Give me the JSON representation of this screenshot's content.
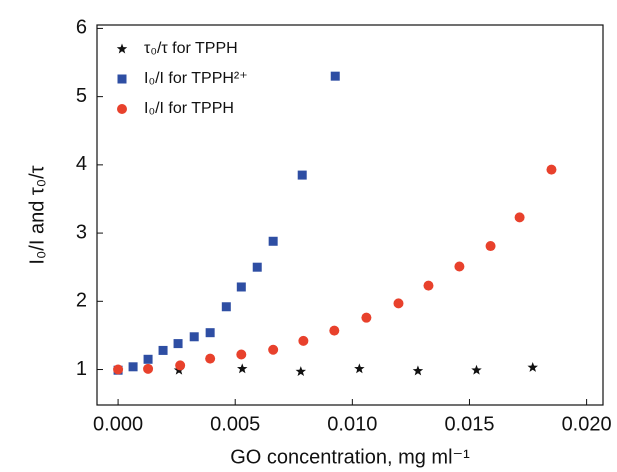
{
  "chart_data": {
    "type": "scatter",
    "xlabel": "GO concentration, mg ml⁻¹",
    "ylabel": "I₀/I and τ₀/τ",
    "xlim": [
      -0.0009,
      0.0207
    ],
    "ylim": [
      0.48,
      6.05
    ],
    "xticks": [
      {
        "value": 0,
        "label": "0.000"
      },
      {
        "value": 0.005,
        "label": "0.005"
      },
      {
        "value": 0.01,
        "label": "0.010"
      },
      {
        "value": 0.015,
        "label": "0.015"
      },
      {
        "value": 0.02,
        "label": "0.020"
      }
    ],
    "yticks": [
      1,
      2,
      3,
      4,
      5,
      6
    ],
    "legend": "upper left",
    "series": [
      {
        "name": "τ₀/τ for TPPH",
        "color": "#111111",
        "marker": "star",
        "x": [
          0,
          0.0026,
          0.0053,
          0.0078,
          0.0103,
          0.0128,
          0.0153,
          0.0177
        ],
        "values": [
          0.99,
          0.99,
          1.01,
          0.97,
          1.01,
          0.98,
          0.99,
          1.03
        ]
      },
      {
        "name": "I₀/I for TPPH²⁺",
        "color": "#2e4ea3",
        "marker": "square",
        "x": [
          0,
          0.00064,
          0.00128,
          0.00192,
          0.00256,
          0.00325,
          0.00393,
          0.00462,
          0.00526,
          0.00594,
          0.00662,
          0.00786,
          0.00927
        ],
        "values": [
          0.99,
          1.04,
          1.15,
          1.28,
          1.38,
          1.48,
          1.54,
          1.92,
          2.21,
          2.5,
          2.88,
          3.85,
          5.3
        ]
      },
      {
        "name": "I₀/I for TPPH",
        "color": "#e8412c",
        "marker": "circle",
        "x": [
          0,
          0.00128,
          0.00265,
          0.00393,
          0.00526,
          0.00662,
          0.00791,
          0.00923,
          0.0106,
          0.01197,
          0.01325,
          0.01457,
          0.0159,
          0.01714,
          0.0185
        ],
        "values": [
          1.0,
          1.01,
          1.06,
          1.16,
          1.22,
          1.29,
          1.42,
          1.57,
          1.76,
          1.97,
          2.23,
          2.51,
          2.81,
          3.23,
          3.93
        ]
      }
    ]
  }
}
